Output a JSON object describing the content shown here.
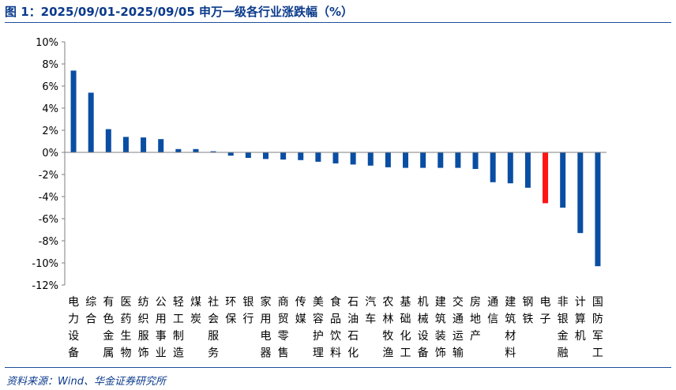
{
  "header": {
    "title": "图 1：2025/09/01-2025/09/05 申万一级各行业涨跌幅（%）"
  },
  "footer": {
    "source": "资料来源：Wind、华金证券研究所"
  },
  "chart_data": {
    "type": "bar",
    "title": "",
    "xlabel": "",
    "ylabel": "",
    "ylim": [
      -12,
      10
    ],
    "yticks": [
      10,
      8,
      6,
      4,
      2,
      0,
      -2,
      -4,
      -6,
      -8,
      -10,
      -12
    ],
    "ytick_labels": [
      "10%",
      "8%",
      "6%",
      "4%",
      "2%",
      "0%",
      "-2%",
      "-4%",
      "-6%",
      "-8%",
      "-10%",
      "-12%"
    ],
    "grid": false,
    "legend": "none",
    "colors": {
      "default": "#0a4ea3",
      "highlight": "#ff1414"
    },
    "highlight_category": "电子",
    "categories": [
      "电力设备",
      "综合",
      "有色金属",
      "医药生物",
      "纺织服饰",
      "公用事业",
      "轻工制造",
      "煤炭",
      "社会服务",
      "环保",
      "银行",
      "家用电器",
      "商贸零售",
      "传媒",
      "美容护理",
      "食品饮料",
      "石油石化",
      "汽车",
      "农林牧渔",
      "基础化工",
      "机械设备",
      "建筑装饰",
      "交通运输",
      "房地产",
      "通信",
      "建筑材料",
      "钢铁",
      "电子",
      "非银金融",
      "计算机",
      "国防军工"
    ],
    "values": [
      7.4,
      5.4,
      2.1,
      1.4,
      1.35,
      1.2,
      0.3,
      0.3,
      0.1,
      -0.3,
      -0.5,
      -0.6,
      -0.65,
      -0.7,
      -0.85,
      -1.0,
      -1.1,
      -1.2,
      -1.35,
      -1.4,
      -1.4,
      -1.4,
      -1.4,
      -1.5,
      -2.7,
      -2.8,
      -3.2,
      -4.6,
      -5.0,
      -7.3,
      -10.3
    ]
  }
}
